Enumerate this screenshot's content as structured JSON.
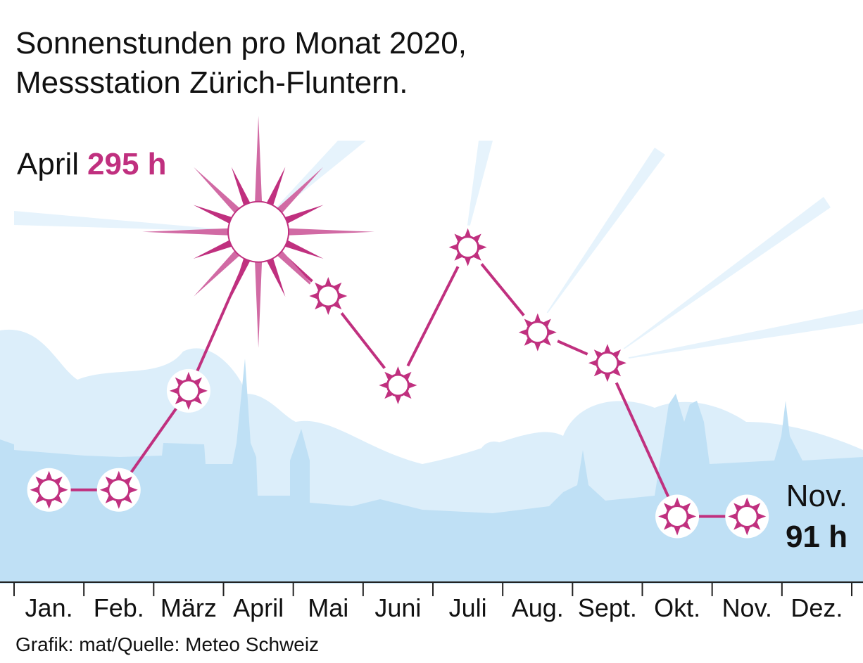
{
  "chart_data": {
    "type": "line",
    "title_lines": [
      "Sonnenstunden pro Monat 2020,",
      "Messstation Zürich-Fluntern."
    ],
    "source": "Grafik: mat/Quelle: Meteo Schweiz",
    "categories": [
      "Jan.",
      "Feb.",
      "März",
      "April",
      "Mai",
      "Juni",
      "Juli",
      "Aug.",
      "Sept.",
      "Okt.",
      "Nov.",
      "Dez."
    ],
    "series": [
      {
        "name": "Sonnenstunden",
        "color": "#c0307f",
        "values": [
          110,
          110,
          181,
          295,
          249,
          185,
          284,
          223,
          201,
          91,
          91,
          null
        ],
        "value_labels": [
          null,
          null,
          null,
          "295 h",
          null,
          null,
          null,
          null,
          null,
          null,
          "91 h",
          null
        ]
      }
    ],
    "ylim": [
      0,
      310
    ]
  }
}
